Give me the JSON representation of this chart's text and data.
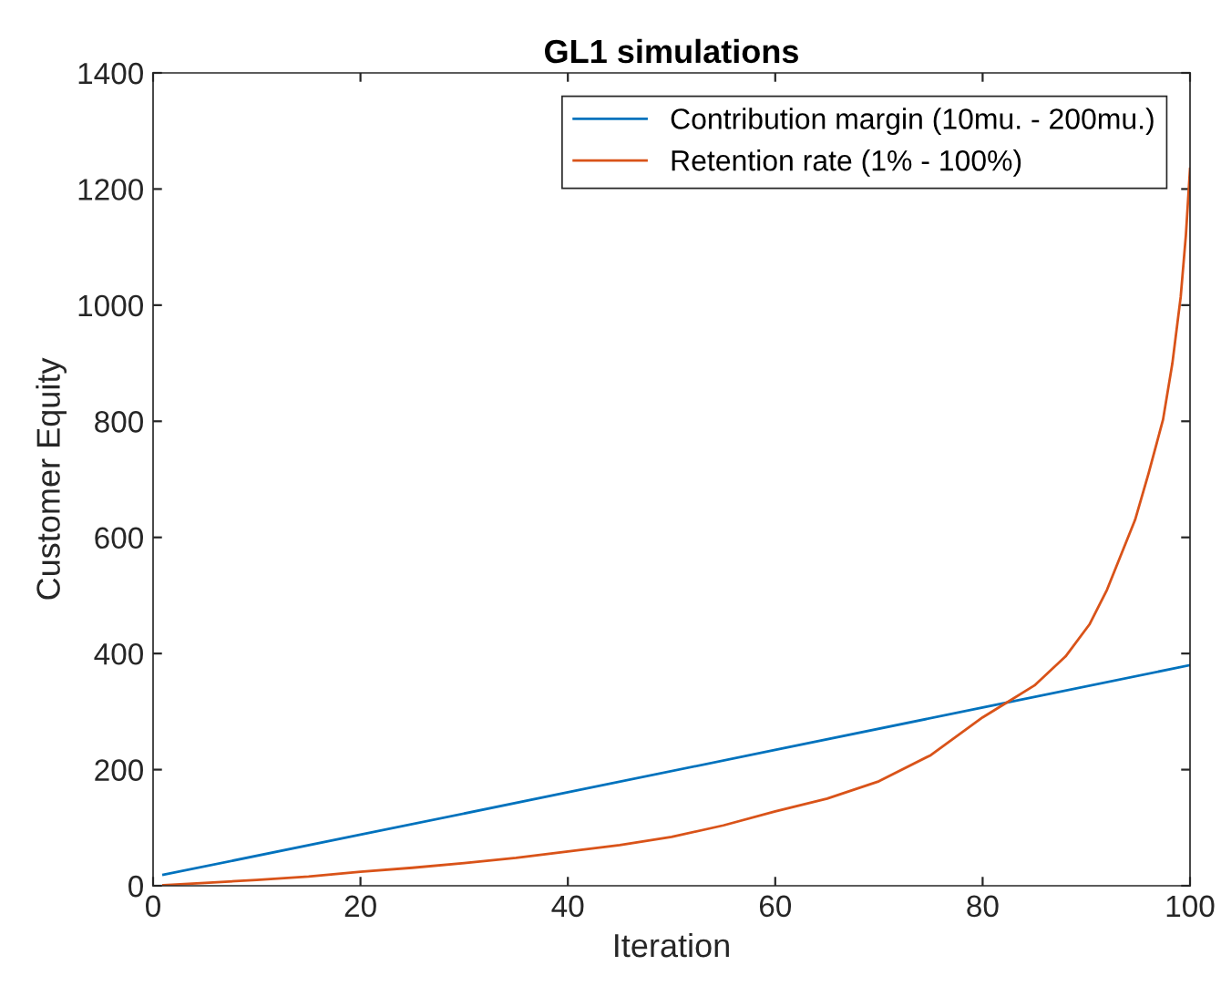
{
  "chart_data": {
    "type": "line",
    "title": "GL1 simulations",
    "xlabel": "Iteration",
    "ylabel": "Customer Equity",
    "xlim": [
      0,
      100
    ],
    "ylim": [
      0,
      1400
    ],
    "xticks": [
      0,
      20,
      40,
      60,
      80,
      100
    ],
    "yticks": [
      0,
      200,
      400,
      600,
      800,
      1000,
      1200,
      1400
    ],
    "grid": false,
    "legend": "top right",
    "marker": "none",
    "line_style": "solid",
    "series": [
      {
        "name": "Contribution margin (10mu. - 200mu.)",
        "color": "#0072bd",
        "x": [
          1,
          20,
          40,
          60,
          80,
          100
        ],
        "values": [
          19,
          88,
          161,
          234,
          307,
          380
        ]
      },
      {
        "name": "Retention rate (1% - 100%)",
        "color": "#d95319",
        "x": [
          1,
          5,
          10,
          15,
          20,
          25,
          30,
          35,
          40,
          45,
          50,
          55,
          60,
          65,
          70,
          75,
          80,
          82,
          85,
          88,
          90.3,
          92,
          94.7,
          96,
          97.4,
          98.3,
          99.1,
          99.6,
          100
        ],
        "values": [
          1,
          5,
          10,
          16,
          24,
          31,
          39,
          48,
          59,
          70,
          84,
          104,
          128,
          150,
          180,
          225,
          290,
          312,
          345,
          395,
          450,
          510,
          630,
          710,
          803,
          900,
          1014,
          1120,
          1235
        ]
      }
    ]
  }
}
